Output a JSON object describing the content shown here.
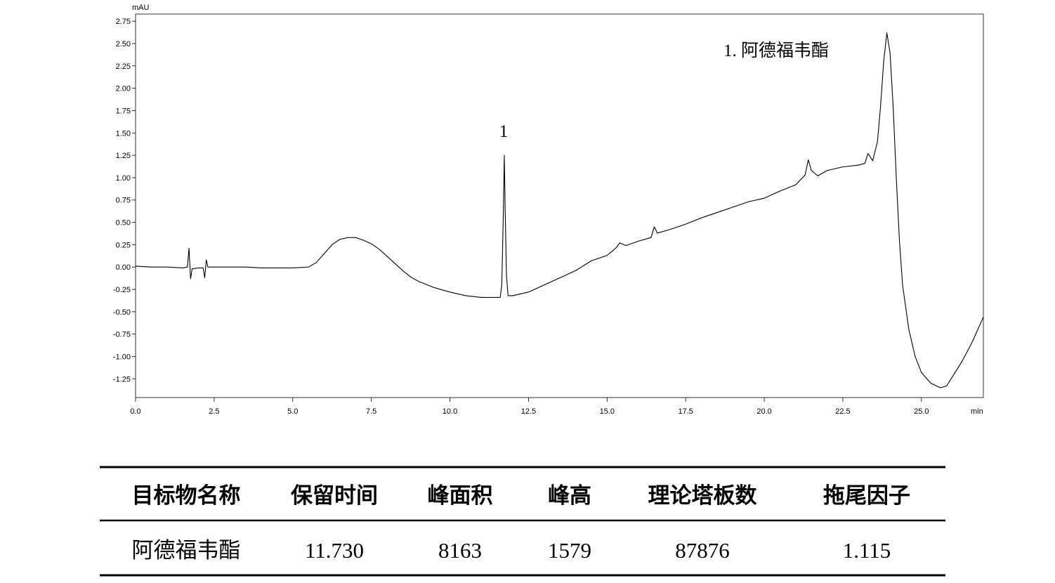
{
  "chart_data": {
    "type": "line",
    "y_label": "mAU",
    "x_label": "min",
    "annotations": [
      "1",
      "1. 阿德福韦酯"
    ],
    "color": "#000000",
    "x": [
      0,
      0.5,
      1.0,
      1.5,
      1.65,
      1.7,
      1.75,
      1.8,
      2.0,
      2.15,
      2.2,
      2.25,
      2.3,
      2.5,
      3.0,
      3.5,
      4.0,
      4.5,
      5.0,
      5.5,
      5.75,
      6.0,
      6.25,
      6.5,
      6.75,
      7.0,
      7.25,
      7.5,
      7.75,
      8.0,
      8.25,
      8.5,
      8.75,
      9.0,
      9.5,
      10.0,
      10.5,
      11.0,
      11.5,
      11.6,
      11.65,
      11.7,
      11.73,
      11.76,
      11.8,
      11.85,
      12.0,
      12.5,
      13.0,
      13.5,
      14.0,
      14.5,
      15.0,
      15.3,
      15.4,
      15.6,
      16.0,
      16.4,
      16.5,
      16.6,
      17.0,
      17.5,
      18.0,
      18.5,
      19.0,
      19.5,
      20.0,
      20.5,
      21.0,
      21.3,
      21.4,
      21.5,
      21.7,
      22.0,
      22.5,
      23.0,
      23.2,
      23.3,
      23.45,
      23.6,
      23.7,
      23.8,
      23.9,
      24.0,
      24.1,
      24.2,
      24.3,
      24.4,
      24.6,
      24.8,
      25.0,
      25.3,
      25.6,
      25.8,
      26.0,
      26.3,
      26.6,
      26.97
    ],
    "values": [
      0.01,
      0.0,
      0.0,
      -0.01,
      0.0,
      0.21,
      -0.13,
      -0.02,
      -0.01,
      -0.01,
      -0.12,
      0.08,
      0.0,
      0.0,
      0.0,
      0.0,
      -0.01,
      -0.01,
      -0.01,
      0.0,
      0.05,
      0.15,
      0.25,
      0.31,
      0.33,
      0.33,
      0.3,
      0.26,
      0.2,
      0.12,
      0.04,
      -0.04,
      -0.11,
      -0.16,
      -0.23,
      -0.28,
      -0.32,
      -0.34,
      -0.34,
      -0.34,
      -0.2,
      0.6,
      1.25,
      0.6,
      -0.1,
      -0.32,
      -0.32,
      -0.28,
      -0.2,
      -0.12,
      -0.04,
      0.07,
      0.13,
      0.22,
      0.27,
      0.24,
      0.29,
      0.33,
      0.45,
      0.38,
      0.42,
      0.48,
      0.55,
      0.61,
      0.67,
      0.73,
      0.77,
      0.85,
      0.92,
      1.03,
      1.2,
      1.08,
      1.02,
      1.08,
      1.12,
      1.14,
      1.16,
      1.27,
      1.19,
      1.4,
      1.8,
      2.3,
      2.62,
      2.4,
      1.8,
      1.0,
      0.3,
      -0.2,
      -0.7,
      -1.0,
      -1.18,
      -1.3,
      -1.35,
      -1.33,
      -1.22,
      -1.05,
      -0.85,
      -0.56
    ],
    "xlim": [
      0,
      26.97
    ],
    "ylim": [
      -1.46,
      2.83
    ],
    "xticks": [
      {
        "value": 0,
        "label": "0.0"
      },
      2.5,
      {
        "value": 5,
        "label": "5.0"
      },
      7.5,
      {
        "value": 10,
        "label": "10.0"
      },
      12.5,
      {
        "value": 15,
        "label": "15.0"
      },
      17.5,
      {
        "value": 20,
        "label": "20.0"
      },
      22.5,
      {
        "value": 25,
        "label": "25.0"
      }
    ],
    "yticks": [
      {
        "value": 2.75,
        "label": "2.75"
      },
      {
        "value": 2.5,
        "label": "2.50"
      },
      {
        "value": 2.25,
        "label": "2.25"
      },
      {
        "value": 2,
        "label": "2.00"
      },
      {
        "value": 1.75,
        "label": "1.75"
      },
      {
        "value": 1.5,
        "label": "1.50"
      },
      {
        "value": 1.25,
        "label": "1.25"
      },
      {
        "value": 1,
        "label": "1.00"
      },
      {
        "value": 0.75,
        "label": "0.75"
      },
      {
        "value": 0.5,
        "label": "0.50"
      },
      {
        "value": 0.25,
        "label": "0.25"
      },
      {
        "value": 0,
        "label": "0.00"
      },
      {
        "value": -0.25,
        "label": "-0.25"
      },
      {
        "value": -0.5,
        "label": "-0.50"
      },
      {
        "value": -0.75,
        "label": "-0.75"
      },
      {
        "value": -1,
        "label": "-1.00"
      },
      {
        "value": -1.25,
        "label": "-1.25"
      }
    ],
    "grid": false
  },
  "table": {
    "header": [
      "目标物名称",
      "保留时间",
      "峰面积",
      "峰高",
      "理论塔板数",
      "拖尾因子"
    ],
    "rows": [
      [
        "阿德福韦酯",
        "11.730",
        "8163",
        "1579",
        "87876",
        "1.115"
      ]
    ]
  }
}
